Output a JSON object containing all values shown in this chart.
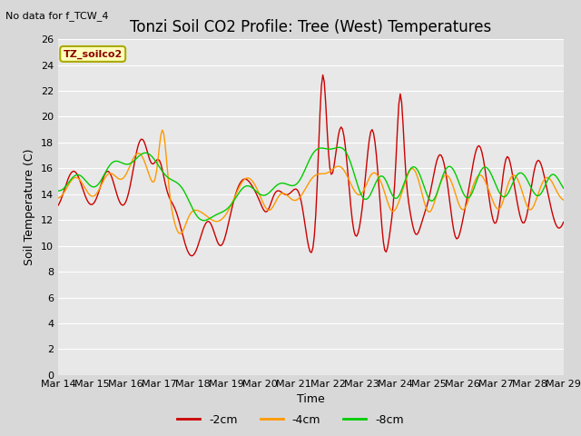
{
  "title": "Tonzi Soil CO2 Profile: Tree (West) Temperatures",
  "no_data_text": "No data for f_TCW_4",
  "xlabel": "Time",
  "ylabel": "Soil Temperature (C)",
  "ylim": [
    0,
    26
  ],
  "yticks": [
    0,
    2,
    4,
    6,
    8,
    10,
    12,
    14,
    16,
    18,
    20,
    22,
    24,
    26
  ],
  "legend_label": "TZ_soilco2",
  "legend_entries": [
    "-2cm",
    "-4cm",
    "-8cm"
  ],
  "colors": {
    "minus2cm": "#cc0000",
    "minus4cm": "#ff9900",
    "minus8cm": "#00cc00"
  },
  "xtick_labels": [
    "Mar 14",
    "Mar 15",
    "Mar 16",
    "Mar 17",
    "Mar 18",
    "Mar 19",
    "Mar 20",
    "Mar 21",
    "Mar 22",
    "Mar 23",
    "Mar 24",
    "Mar 25",
    "Mar 26",
    "Mar 27",
    "Mar 28",
    "Mar 29"
  ],
  "plot_bg_color": "#e8e8e8",
  "fig_bg_color": "#d8d8d8",
  "grid_color": "#ffffff",
  "line_width": 1.0,
  "title_fontsize": 12,
  "axis_label_fontsize": 9,
  "tick_fontsize": 8
}
